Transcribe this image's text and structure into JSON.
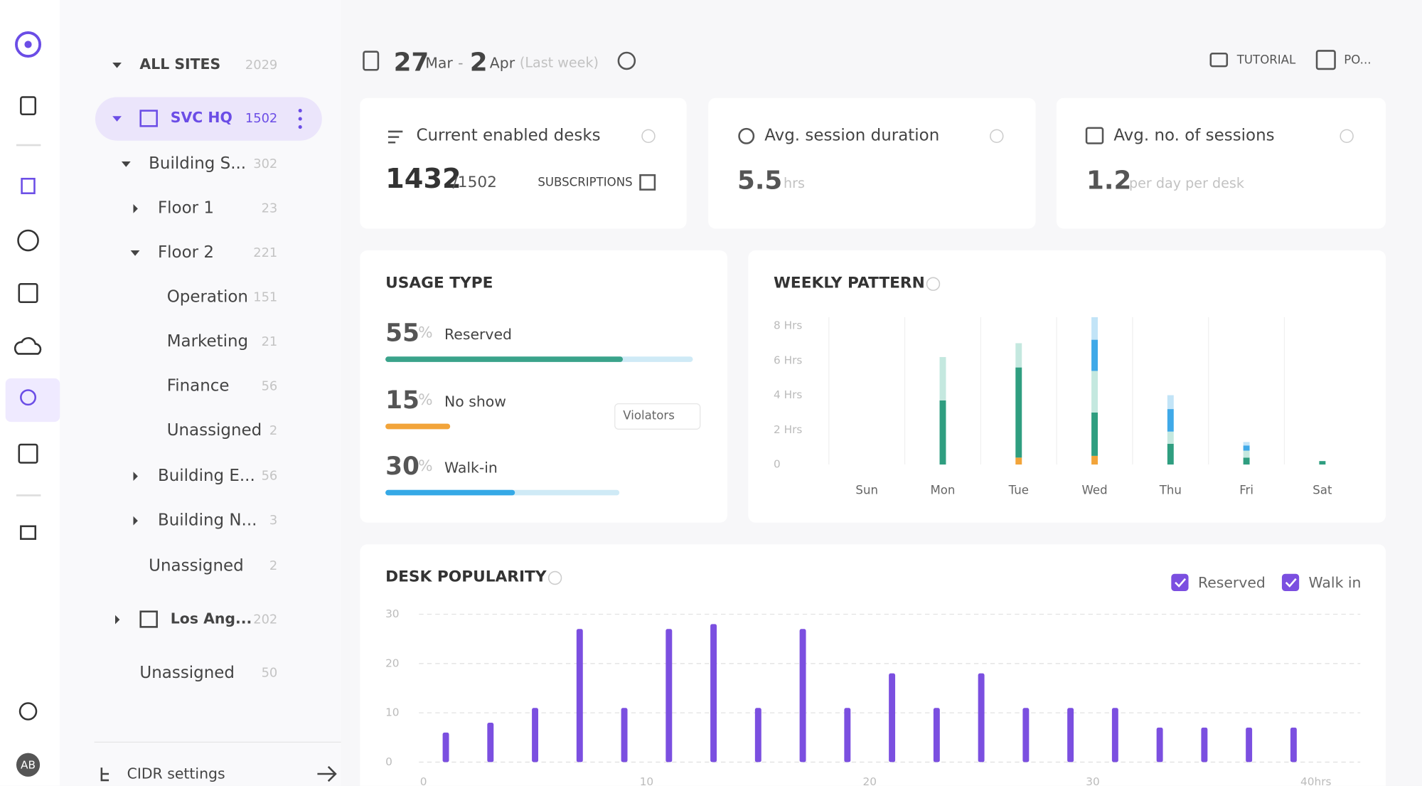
{
  "sidebar": {
    "tree": [
      {
        "label": "ALL SITES",
        "count": 2029,
        "expanded": true
      },
      {
        "label": "SVC HQ",
        "count": 1502,
        "expanded": true,
        "selected": true
      },
      {
        "label": "Building S...",
        "count": 302,
        "expanded": true
      },
      {
        "label": "Floor 1",
        "count": 23,
        "expanded": false
      },
      {
        "label": "Floor 2",
        "count": 221,
        "expanded": true
      },
      {
        "label": "Operation",
        "count": 151
      },
      {
        "label": "Marketing",
        "count": 21
      },
      {
        "label": "Finance",
        "count": 56
      },
      {
        "label": "Unassigned",
        "count": 2
      },
      {
        "label": "Building E...",
        "count": 56,
        "expanded": false
      },
      {
        "label": "Building N...",
        "count": 3,
        "expanded": false
      },
      {
        "label": "Unassigned",
        "count": 2
      },
      {
        "label": "Los Ang...",
        "count": 202,
        "expanded": false
      },
      {
        "label": "Unassigned",
        "count": 50
      }
    ],
    "footer": "CIDR settings",
    "user": "AB"
  },
  "header": {
    "start_day": 27,
    "start_month": "Mar",
    "separator": "-",
    "end_day": 2,
    "end_month": "Apr",
    "range_label": "(Last week)",
    "buttons": [
      "TUTORIAL",
      "PO..."
    ]
  },
  "cards": [
    {
      "title": "Current enabled desks",
      "value": 1432,
      "suffix": "/1502",
      "link": "SUBSCRIPTIONS"
    },
    {
      "title": "Avg. session duration",
      "value": 5.5,
      "suffix": "hrs"
    },
    {
      "title": "Avg. no. of sessions",
      "value": 1.2,
      "suffix": "per day per desk"
    }
  ],
  "usage": {
    "title": "USAGE TYPE",
    "button": "Violators",
    "items": [
      {
        "value": 55,
        "unit": "%",
        "label": "Reserved",
        "color": "#3aa38a"
      },
      {
        "value": 15,
        "unit": "%",
        "label": "No show",
        "color": "#f2a43a"
      },
      {
        "value": 30,
        "unit": "%",
        "label": "Walk-in",
        "color": "#35a9e6"
      }
    ]
  },
  "chart_data": [
    {
      "type": "stacked-bar",
      "title": "WEEKLY PATTERN",
      "categories": [
        "Sun",
        "Mon",
        "Tue",
        "Wed",
        "Thu",
        "Fri",
        "Sat"
      ],
      "series": [
        {
          "color": "#f2a43a",
          "values": [
            0,
            0,
            0.4,
            0.5,
            0,
            0,
            0
          ]
        },
        {
          "color": "#2f9e80",
          "values": [
            0,
            3.7,
            5.2,
            2.5,
            1.2,
            0.4,
            0.2
          ]
        },
        {
          "color": "#c4e8df",
          "values": [
            0,
            2.5,
            1.4,
            2.4,
            0.7,
            0.4,
            0
          ]
        },
        {
          "color": "#3fa9e8",
          "values": [
            0,
            0,
            0,
            1.8,
            1.3,
            0.3,
            0
          ]
        },
        {
          "color": "#c2e4f7",
          "values": [
            0,
            0,
            0,
            1.3,
            0.8,
            0.2,
            0
          ]
        }
      ],
      "ylim": [
        0,
        8.5
      ],
      "yticks": [
        0,
        {
          "value": 2,
          "label": "2 Hrs"
        },
        {
          "value": 4,
          "label": "4 Hrs"
        },
        {
          "value": 6,
          "label": "6 Hrs"
        },
        {
          "value": 8,
          "label": "8 Hrs"
        }
      ],
      "grid": true
    },
    {
      "type": "bar",
      "title": "DESK POPULARITY",
      "x": [
        1,
        3,
        5,
        7,
        9,
        11,
        13,
        15,
        17,
        19,
        21,
        23,
        25,
        27,
        29,
        31,
        33,
        35,
        37,
        39
      ],
      "values": [
        6,
        8,
        11,
        27,
        11,
        27,
        28,
        11,
        27,
        11,
        18,
        11,
        18,
        11,
        11,
        11,
        7,
        7,
        7,
        7
      ],
      "color": "#7b4fe0",
      "xlim": [
        0,
        40
      ],
      "xticks": [
        0,
        10,
        20,
        30,
        {
          "value": 40,
          "label": "40hrs"
        }
      ],
      "ylim": [
        0,
        30
      ],
      "yticks": [
        0,
        10,
        20,
        30
      ],
      "grid": true,
      "legend": [
        {
          "name": "Reserved",
          "checked": true
        },
        {
          "name": "Walk in",
          "checked": true
        }
      ]
    }
  ]
}
